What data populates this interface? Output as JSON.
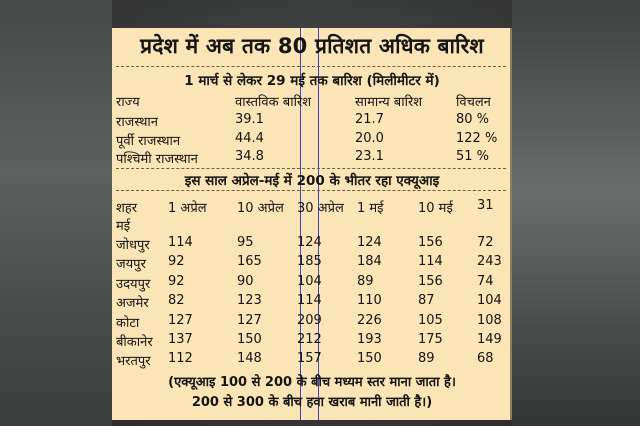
{
  "title": "प्रदेश में अब तक 80 प्रतिशत अधिक बारिश",
  "rain": {
    "subtitle": "1 मार्च से लेकर 29 मई तक बारिश (मिलीमीटर में)",
    "headers": [
      "राज्य",
      "वास्तविक बारिश",
      "सामान्य बारिश",
      "विचलन"
    ],
    "rows": [
      [
        "राजस्थान",
        "39.1",
        "21.7",
        "80 %"
      ],
      [
        "पूर्वी राजस्थान",
        "44.4",
        "20.0",
        "122 %"
      ],
      [
        "पश्चिमी राजस्थान",
        "34.8",
        "23.1",
        "51 %"
      ]
    ]
  },
  "aqi": {
    "subtitle": "इस साल अप्रेल-मई में 200 के भीतर रहा एक्यूआइ",
    "headers": [
      "शहर",
      "1 अप्रेल",
      "10 अप्रेल",
      "30 अप्रेल",
      "1 मई",
      "10 मई",
      "31"
    ],
    "header_wrap": "मई",
    "rows": [
      [
        "जोधपुर",
        "114",
        "95",
        "124",
        "124",
        "156",
        "72"
      ],
      [
        "जयपुर",
        "92",
        "165",
        "185",
        "184",
        "114",
        "243"
      ],
      [
        "उदयपुर",
        "92",
        "90",
        "104",
        "89",
        "156",
        "74"
      ],
      [
        "अजमेर",
        "82",
        "123",
        "114",
        "110",
        "87",
        "104"
      ],
      [
        "कोटा",
        "127",
        "127",
        "209",
        "226",
        "105",
        "108"
      ],
      [
        "बीकानेर",
        "137",
        "150",
        "212",
        "193",
        "175",
        "149"
      ],
      [
        "भरतपुर",
        "112",
        "148",
        "157",
        "150",
        "89",
        "68"
      ]
    ]
  },
  "note": {
    "line1": "(एक्यूआइ 100 से 200 के बीच मध्यम स्तर माना जाता है।",
    "line2": "200 से 300 के बीच हवा खराब मानी जाती है।)"
  }
}
